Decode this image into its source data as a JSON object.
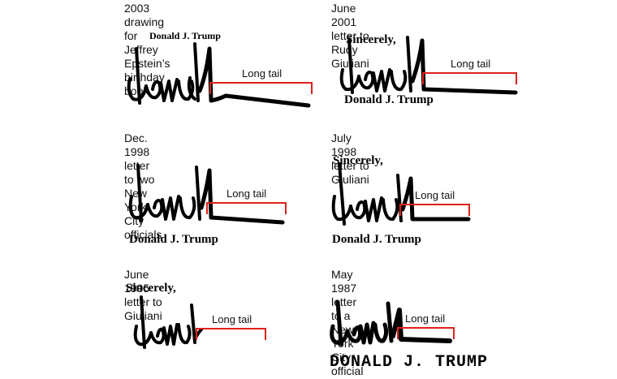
{
  "panels": [
    {
      "caption": "2003 drawing for\nJeffrey Epstein’s birthday book",
      "printed_top": "Donald J. Trump",
      "bracket_label": "Long tail"
    },
    {
      "caption": "June 2001 letter to\nRudy Giuliani",
      "closing": "Sincerely,",
      "printed_bottom": "Donald J. Trump",
      "bracket_label": "Long tail"
    },
    {
      "caption": "Dec. 1998 letter to two\nNew York City officials",
      "printed_bottom": "Donald J. Trump",
      "bracket_label": "Long tail"
    },
    {
      "caption": "July 1998 letter to Giuliani",
      "closing": "Sincerely,",
      "printed_bottom": "Donald J. Trump",
      "bracket_label": "Long tail"
    },
    {
      "caption": "June 1995 letter to Giuliani",
      "closing": "Sincerely,",
      "bracket_label": "Long tail"
    },
    {
      "caption": "May 1987 letter to a\nNew York City official",
      "printed_bottom": "DONALD J. TRUMP",
      "bracket_label": "Long tail"
    }
  ],
  "colors": {
    "bracket": "#e0201b",
    "ink": "#000000"
  },
  "signature_text": "Donald"
}
